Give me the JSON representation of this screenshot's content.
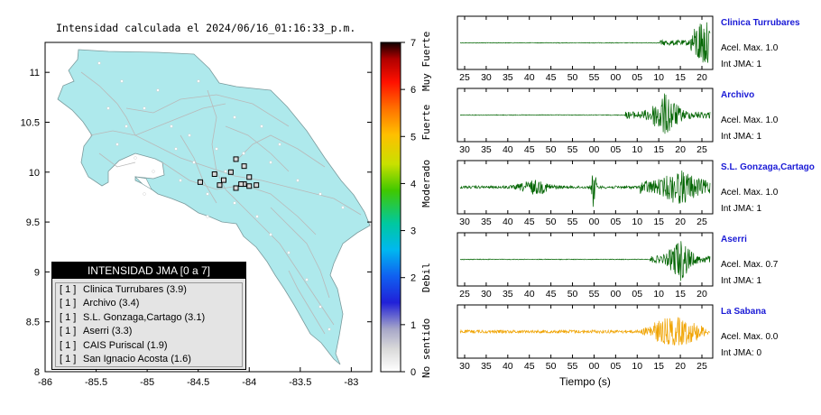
{
  "map": {
    "title": "Intensidad calculada el 2024/06/16_01:16:33_p.m.",
    "x_ticks": [
      "-86",
      "-85.5",
      "-85",
      "-84.5",
      "-84",
      "-83.5",
      "-83"
    ],
    "y_ticks": [
      "8",
      "8.5",
      "9",
      "9.5",
      "10",
      "10.5",
      "11"
    ],
    "xlim": [
      -86,
      -82.8
    ],
    "ylim": [
      8,
      11.3
    ],
    "land_color": "#aee9ec",
    "colorbar": {
      "ticks": [
        "0",
        "1",
        "2",
        "3",
        "4",
        "5",
        "6",
        "7"
      ],
      "range": [
        0,
        7
      ],
      "category_labels": [
        {
          "label": "No sentido",
          "at": 0.5
        },
        {
          "label": "Debil",
          "at": 2
        },
        {
          "label": "Moderado",
          "at": 4
        },
        {
          "label": "Fuerte",
          "at": 5.3
        },
        {
          "label": "Muy Fuerte",
          "at": 6.6
        }
      ]
    },
    "legend": {
      "header": "INTENSIDAD JMA [0 a 7]",
      "items": [
        {
          "level": "[ 1 ]",
          "name": "Clinica Turrubares (3.9)"
        },
        {
          "level": "[ 1 ]",
          "name": "Archivo (3.4)"
        },
        {
          "level": "[ 1 ]",
          "name": "S.L. Gonzaga,Cartago (3.1)"
        },
        {
          "level": "[ 1 ]",
          "name": "Aserri (3.3)"
        },
        {
          "level": "[ 1 ]",
          "name": "CAIS Puriscal (1.9)"
        },
        {
          "level": "[ 1 ]",
          "name": "San Ignacio Acosta (1.6)"
        }
      ]
    },
    "station_markers": [
      {
        "lon": -84.13,
        "lat": 10.13
      },
      {
        "lon": -84.05,
        "lat": 10.06
      },
      {
        "lon": -84.18,
        "lat": 10.0
      },
      {
        "lon": -84.34,
        "lat": 9.98
      },
      {
        "lon": -84.0,
        "lat": 9.95
      },
      {
        "lon": -84.25,
        "lat": 9.92
      },
      {
        "lon": -84.05,
        "lat": 9.88
      },
      {
        "lon": -84.0,
        "lat": 9.86
      },
      {
        "lon": -83.93,
        "lat": 9.87
      },
      {
        "lon": -84.48,
        "lat": 9.9
      },
      {
        "lon": -84.29,
        "lat": 9.87
      },
      {
        "lon": -84.13,
        "lat": 9.84
      },
      {
        "lon": -84.08,
        "lat": 9.88
      }
    ]
  },
  "waveforms": {
    "xlabel": "Tiempo (s)",
    "panels": [
      {
        "station": "Clinica Turrubares",
        "accel": "Acel. Max. 1.0",
        "int": "Int JMA: 1",
        "ticks": [
          "25",
          "30",
          "35",
          "40",
          "45",
          "50",
          "55",
          "00",
          "05",
          "10",
          "15",
          "20"
        ],
        "color": "#006400",
        "onset": 0.82
      },
      {
        "station": "Archivo",
        "accel": "Acel. Max. 1.0",
        "int": "Int JMA: 1",
        "ticks": [
          "30",
          "35",
          "40",
          "45",
          "50",
          "55",
          "00",
          "05",
          "10",
          "15",
          "20",
          "25"
        ],
        "color": "#006400",
        "onset": 0.67
      },
      {
        "station": "S.L. Gonzaga,Cartago",
        "accel": "Acel. Max. 1.0",
        "int": "Int JMA: 1",
        "ticks": [
          "30",
          "35",
          "40",
          "45",
          "50",
          "55",
          "00",
          "05",
          "10",
          "15",
          "20",
          "25"
        ],
        "color": "#006400",
        "onset": 0.05
      },
      {
        "station": "Aserri",
        "accel": "Acel. Max. 0.7",
        "int": "Int JMA: 1",
        "ticks": [
          "25",
          "30",
          "35",
          "40",
          "45",
          "50",
          "55",
          "00",
          "05",
          "10",
          "15",
          "20"
        ],
        "color": "#006400",
        "onset": 0.77
      },
      {
        "station": "La Sabana",
        "accel": "Acel. Max. 0.0",
        "int": "Int JMA: 0",
        "ticks": [
          "30",
          "35",
          "40",
          "45",
          "50",
          "55",
          "00",
          "05",
          "10",
          "15",
          "20",
          "25"
        ],
        "color": "#f0a300",
        "onset": 0.0
      }
    ]
  },
  "chart_data": {
    "type": "scatter",
    "title": "Intensidad calculada el 2024/06/16_01:16:33_p.m.",
    "xlim": [
      -86,
      -82.8
    ],
    "ylim": [
      8,
      11.3
    ],
    "series": [
      {
        "values": [
          {
            "x": -84.13,
            "y": 10.13
          },
          {
            "x": -84.05,
            "y": 10.06
          },
          {
            "x": -84.18,
            "y": 10.0
          },
          {
            "x": -84.34,
            "y": 9.98
          },
          {
            "x": -84.0,
            "y": 9.95
          },
          {
            "x": -84.25,
            "y": 9.92
          },
          {
            "x": -84.05,
            "y": 9.88
          },
          {
            "x": -84.0,
            "y": 9.86
          },
          {
            "x": -83.93,
            "y": 9.87
          },
          {
            "x": -84.48,
            "y": 9.9
          },
          {
            "x": -84.29,
            "y": 9.87
          },
          {
            "x": -84.13,
            "y": 9.84
          },
          {
            "x": -84.08,
            "y": 9.88
          }
        ]
      }
    ],
    "legend": [
      "Clinica Turrubares (3.9)",
      "Archivo (3.4)",
      "S.L. Gonzaga,Cartago (3.1)",
      "Aserri (3.3)",
      "CAIS Puriscal (1.9)",
      "San Ignacio Acosta (1.6)"
    ]
  }
}
